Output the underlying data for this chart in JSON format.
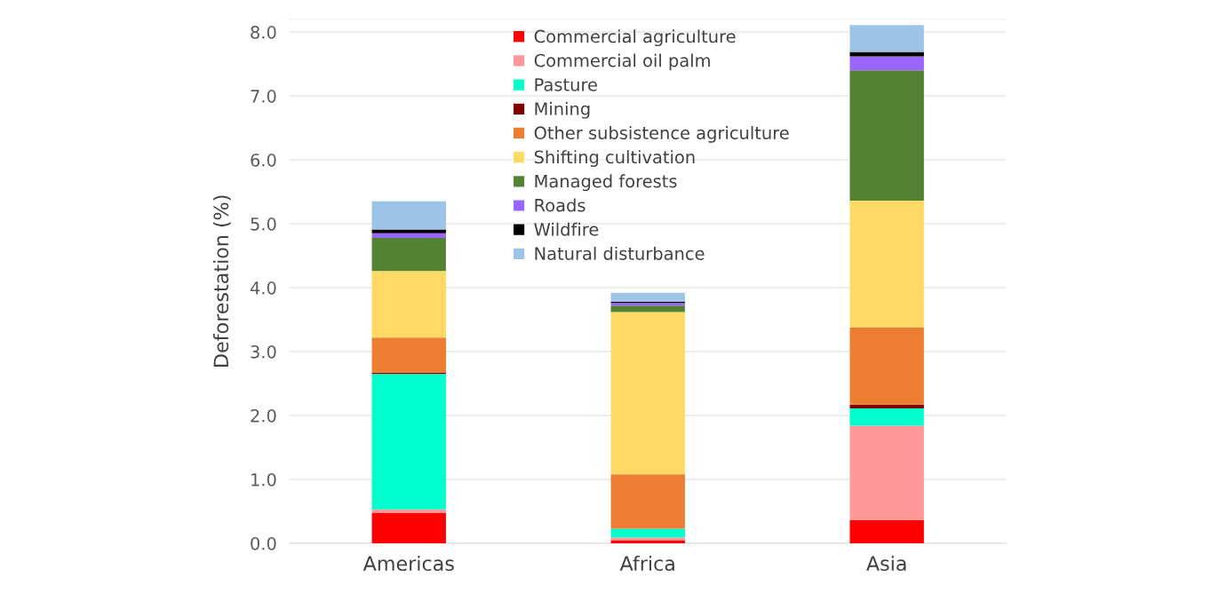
{
  "chart_data": {
    "type": "bar",
    "stacked": true,
    "ylabel": "Deforestation (%)",
    "categories": [
      "Americas",
      "Africa",
      "Asia"
    ],
    "series": [
      {
        "name": "Commercial agriculture",
        "color": "#ff0000",
        "values": [
          0.48,
          0.05,
          0.36
        ]
      },
      {
        "name": "Commercial oil palm",
        "color": "#ff9999",
        "values": [
          0.05,
          0.04,
          1.48
        ]
      },
      {
        "name": "Pasture",
        "color": "#00ffcc",
        "values": [
          2.12,
          0.14,
          0.27
        ]
      },
      {
        "name": "Mining",
        "color": "#800000",
        "values": [
          0.02,
          null,
          0.06
        ]
      },
      {
        "name": "Other subsistence agriculture",
        "color": "#ed7d31",
        "values": [
          0.55,
          0.85,
          1.21
        ]
      },
      {
        "name": "Shifting cultivation",
        "color": "#ffd966",
        "values": [
          1.04,
          2.54,
          1.98
        ]
      },
      {
        "name": "Managed forests",
        "color": "#548235",
        "values": [
          0.52,
          0.1,
          2.04
        ]
      },
      {
        "name": "Roads",
        "color": "#9966ff",
        "values": [
          0.07,
          0.04,
          0.22
        ]
      },
      {
        "name": "Wildfire",
        "color": "#000000",
        "values": [
          0.06,
          0.02,
          0.07
        ]
      },
      {
        "name": "Natural disturbance",
        "color": "#9dc3e6",
        "values": [
          0.44,
          0.14,
          0.42
        ]
      }
    ],
    "ylim": [
      0,
      8.2
    ],
    "yticks": [
      {
        "value": 0,
        "label": "0.0"
      },
      {
        "value": 1,
        "label": "1.0"
      },
      {
        "value": 2,
        "label": "2.0"
      },
      {
        "value": 3,
        "label": "3.0"
      },
      {
        "value": 4,
        "label": "4.0"
      },
      {
        "value": 5,
        "label": "5.0"
      },
      {
        "value": 6,
        "label": "6.0"
      },
      {
        "value": 7,
        "label": "7.0"
      },
      {
        "value": 8,
        "label": "8.0"
      }
    ],
    "grid": "y",
    "legend": "top"
  }
}
